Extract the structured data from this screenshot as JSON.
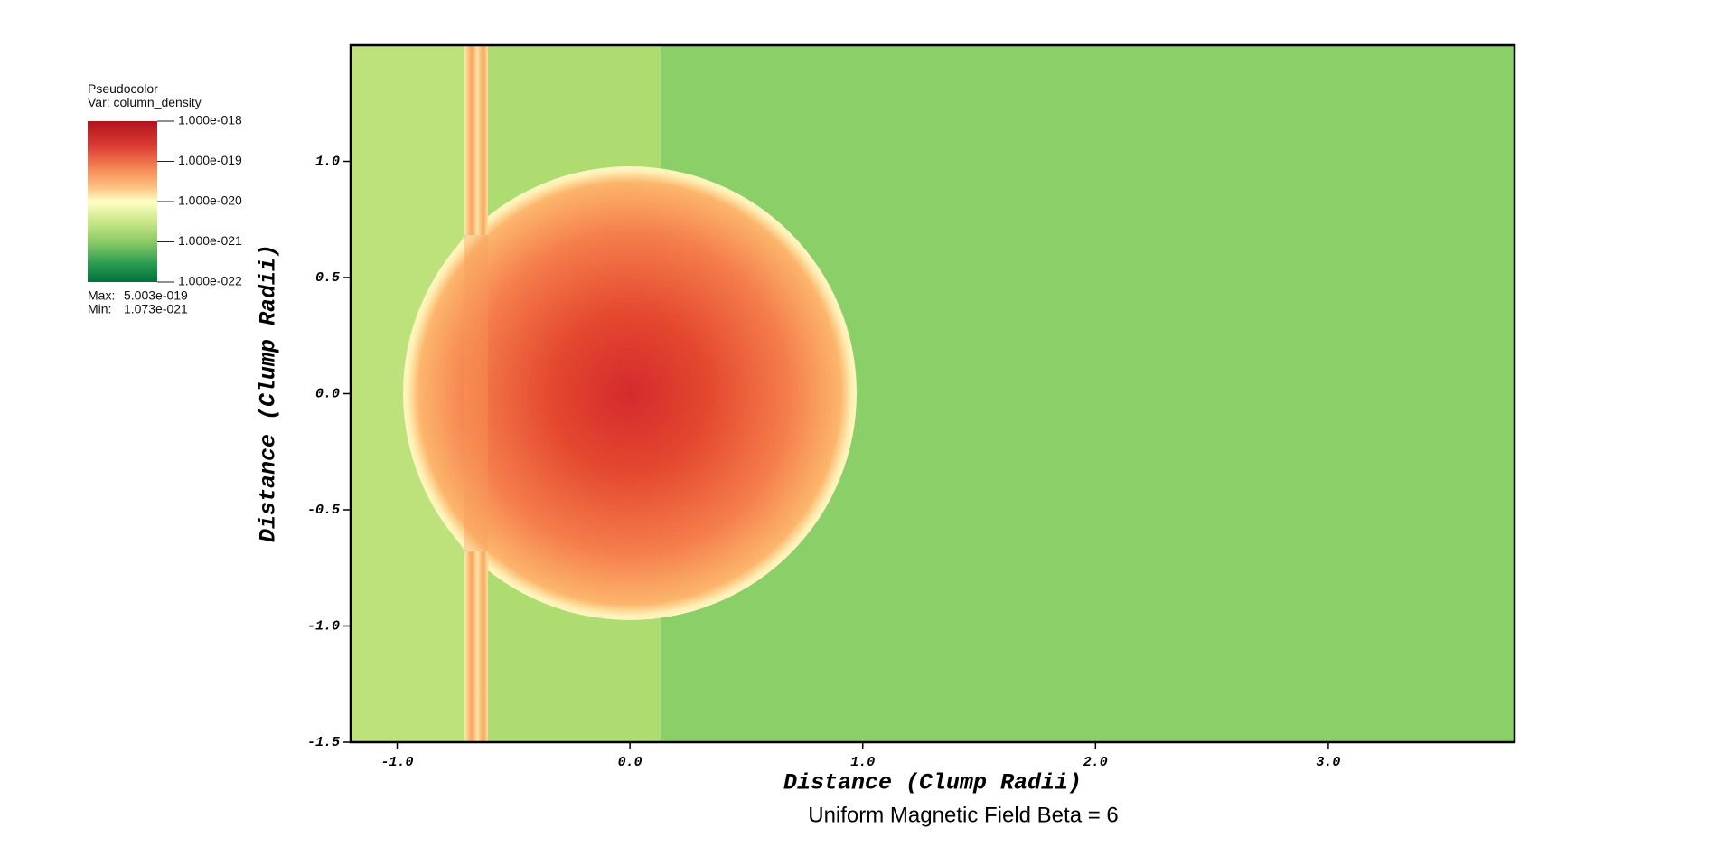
{
  "chart_data": {
    "type": "pseudocolor",
    "title": "Uniform Magnetic Field Beta = 6",
    "xlabel": "Distance (Clump Radii)",
    "ylabel": "Distance (Clump Radii)",
    "xlim": [
      -1.2,
      3.8
    ],
    "ylim": [
      -1.5,
      1.5
    ],
    "xticks": [
      {
        "value": -1,
        "label": "-1.0"
      },
      {
        "value": 0,
        "label": "0.0"
      },
      {
        "value": 1,
        "label": "1.0"
      },
      {
        "value": 2,
        "label": "2.0"
      },
      {
        "value": 3,
        "label": "3.0"
      }
    ],
    "yticks": [
      {
        "value": 1,
        "label": "1.0"
      },
      0.5,
      {
        "value": 0,
        "label": "0.0"
      },
      -0.5,
      {
        "value": -1,
        "label": "-1.0"
      },
      -1.5
    ],
    "colorbar": {
      "title": "Pseudocolor",
      "variable": "Var: column_density",
      "scale": "log",
      "lim": [
        1e-22,
        1e-18
      ],
      "ticks": [
        {
          "value": 1e-18,
          "label": "1.000e-018"
        },
        {
          "value": 1e-19,
          "label": "1.000e-019"
        },
        {
          "value": 1e-20,
          "label": "1.000e-020"
        },
        {
          "value": 1e-21,
          "label": "1.000e-021"
        },
        {
          "value": 1e-22,
          "label": "1.000e-022"
        }
      ],
      "stats": {
        "labels": [
          "Max:",
          "Min:"
        ],
        "values": [
          5.003e-19,
          1.073e-21
        ],
        "value_labels": [
          "5.003e-019",
          "1.073e-021"
        ]
      }
    }
  }
}
